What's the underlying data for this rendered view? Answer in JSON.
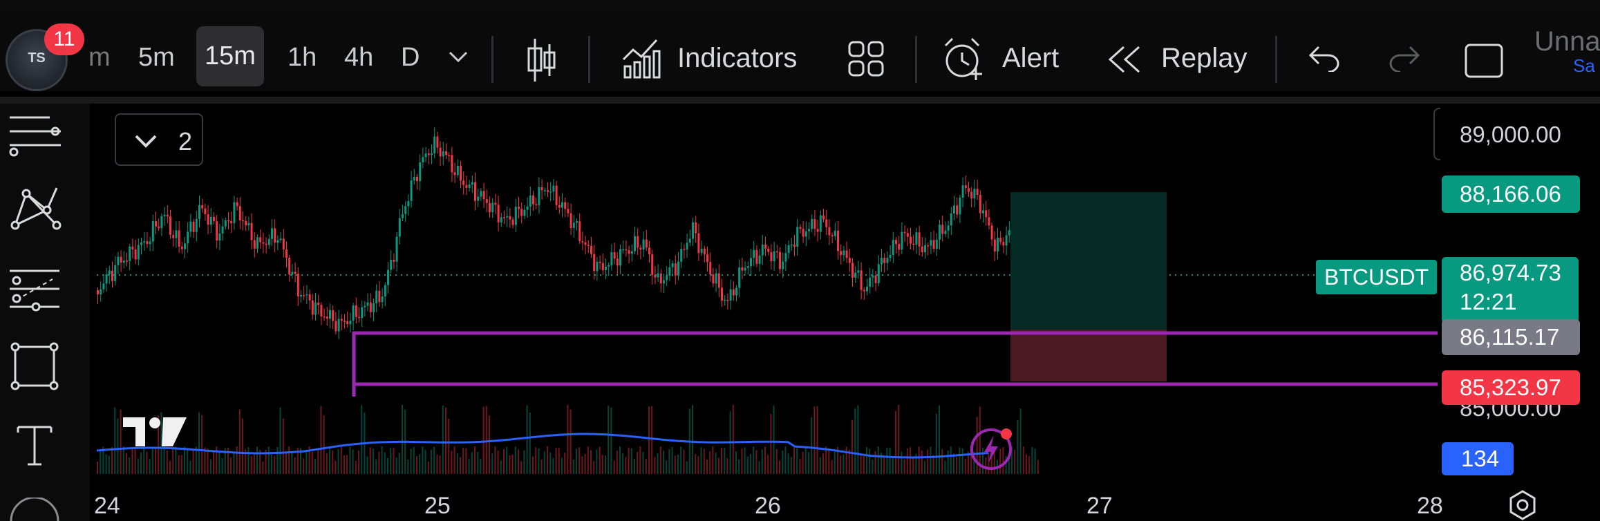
{
  "toolbar": {
    "notification_count": "11",
    "avatar_text": "TS",
    "timeframes": [
      "m",
      "5m",
      "15m",
      "1h",
      "4h",
      "D"
    ],
    "active_timeframe": "15m",
    "indicators_label": "Indicators",
    "alert_label": "Alert",
    "replay_label": "Replay",
    "layout_name": "Unna",
    "layout_sub": "Sa"
  },
  "chart": {
    "symbol": "BTCUSDT",
    "pane_collapse_count": "2",
    "colors": {
      "up": "#089981",
      "down": "#f23645",
      "level": "#9c27b0",
      "volume_line": "#2962ff"
    },
    "price_scale": {
      "top_label": "89,000.00",
      "bottom_label": "85,000.00",
      "target_price": "88,166.06",
      "last_price": "86,974.73",
      "countdown": "12:21",
      "level_upper": "86,115.17",
      "level_lower": "85,323.97",
      "volume_value": "134"
    },
    "time_labels": [
      "24",
      "25",
      "26",
      "27",
      "28"
    ]
  }
}
